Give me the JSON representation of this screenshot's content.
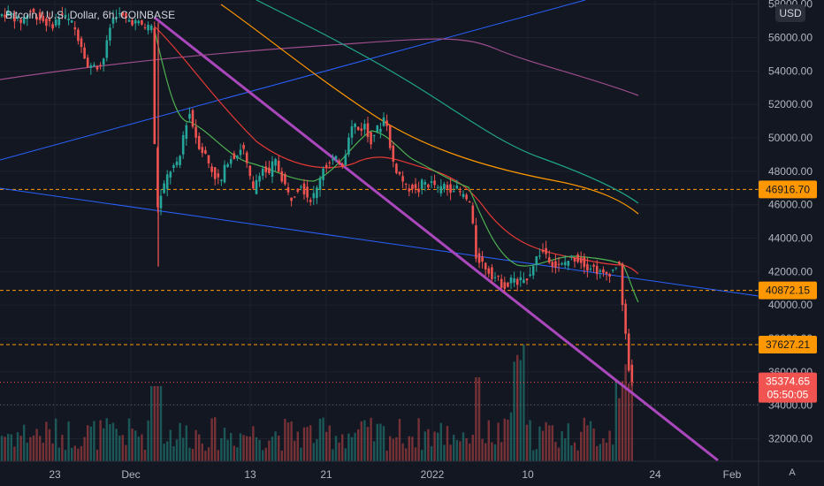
{
  "chart_data": {
    "type": "candlestick",
    "title": "Bitcoin / U.S. Dollar, 6h, COINBASE",
    "currency_button": "USD",
    "auto_scale_button": "A",
    "ylim": [
      30800,
      58600
    ],
    "x_ticks": [
      "23",
      "Dec",
      "13",
      "21",
      "2022",
      "10",
      "24",
      "Feb"
    ],
    "y_ticks": [
      "58000.00",
      "56000.00",
      "54000.00",
      "52000.00",
      "50000.00",
      "48000.00",
      "46000.00",
      "44000.00",
      "42000.00",
      "40000.00",
      "38000.00",
      "36000.00",
      "34000.00",
      "32000.00"
    ],
    "price_path": [
      [
        0,
        57300
      ],
      [
        12,
        57500
      ],
      [
        24,
        56900
      ],
      [
        36,
        57600
      ],
      [
        48,
        57100
      ],
      [
        60,
        56700
      ],
      [
        72,
        57400
      ],
      [
        84,
        56800
      ],
      [
        96,
        55300
      ],
      [
        102,
        54000
      ],
      [
        108,
        54500
      ],
      [
        114,
        54200
      ],
      [
        120,
        54900
      ],
      [
        126,
        56600
      ],
      [
        132,
        57500
      ],
      [
        144,
        57100
      ],
      [
        156,
        56900
      ],
      [
        168,
        56600
      ],
      [
        174,
        56800
      ],
      [
        178,
        45600
      ],
      [
        184,
        46500
      ],
      [
        190,
        47600
      ],
      [
        196,
        48200
      ],
      [
        204,
        48400
      ],
      [
        210,
        50500
      ],
      [
        216,
        51500
      ],
      [
        222,
        50300
      ],
      [
        228,
        49400
      ],
      [
        234,
        49000
      ],
      [
        240,
        48200
      ],
      [
        246,
        47600
      ],
      [
        252,
        47400
      ],
      [
        258,
        48600
      ],
      [
        264,
        48900
      ],
      [
        270,
        49000
      ],
      [
        276,
        49600
      ],
      [
        282,
        48100
      ],
      [
        288,
        46800
      ],
      [
        294,
        47900
      ],
      [
        300,
        48200
      ],
      [
        306,
        47700
      ],
      [
        312,
        48800
      ],
      [
        318,
        47900
      ],
      [
        324,
        47200
      ],
      [
        330,
        46300
      ],
      [
        336,
        46800
      ],
      [
        342,
        47300
      ],
      [
        348,
        46600
      ],
      [
        354,
        46300
      ],
      [
        360,
        46900
      ],
      [
        366,
        48200
      ],
      [
        372,
        48400
      ],
      [
        378,
        48600
      ],
      [
        384,
        48700
      ],
      [
        390,
        48400
      ],
      [
        396,
        50200
      ],
      [
        402,
        50900
      ],
      [
        408,
        50400
      ],
      [
        414,
        50800
      ],
      [
        420,
        49700
      ],
      [
        426,
        50400
      ],
      [
        432,
        50700
      ],
      [
        438,
        51500
      ],
      [
        444,
        48900
      ],
      [
        450,
        48100
      ],
      [
        456,
        47600
      ],
      [
        462,
        46900
      ],
      [
        468,
        47100
      ],
      [
        474,
        46700
      ],
      [
        480,
        47400
      ],
      [
        486,
        47200
      ],
      [
        492,
        47300
      ],
      [
        498,
        46800
      ],
      [
        504,
        47200
      ],
      [
        510,
        46900
      ],
      [
        516,
        47100
      ],
      [
        522,
        46700
      ],
      [
        528,
        46400
      ],
      [
        534,
        46000
      ],
      [
        540,
        42900
      ],
      [
        546,
        42600
      ],
      [
        552,
        42200
      ],
      [
        558,
        41800
      ],
      [
        564,
        41600
      ],
      [
        570,
        41200
      ],
      [
        576,
        41100
      ],
      [
        582,
        41700
      ],
      [
        588,
        41400
      ],
      [
        594,
        41500
      ],
      [
        600,
        41800
      ],
      [
        606,
        42600
      ],
      [
        612,
        43100
      ],
      [
        618,
        43200
      ],
      [
        624,
        42700
      ],
      [
        630,
        42300
      ],
      [
        636,
        42300
      ],
      [
        642,
        42600
      ],
      [
        648,
        42800
      ],
      [
        654,
        42800
      ],
      [
        660,
        42600
      ],
      [
        666,
        42300
      ],
      [
        672,
        42300
      ],
      [
        678,
        42000
      ],
      [
        684,
        41800
      ],
      [
        690,
        41900
      ],
      [
        696,
        42100
      ],
      [
        702,
        42700
      ],
      [
        706,
        40100
      ],
      [
        710,
        37700
      ],
      [
        714,
        35700
      ],
      [
        718,
        35400
      ]
    ],
    "horizontal_levels": [
      {
        "value": 46916.7,
        "label": "46916.70",
        "color": "#ff9800"
      },
      {
        "value": 40872.15,
        "label": "40872.15",
        "color": "#ff9800"
      },
      {
        "value": 37627.21,
        "label": "37627.21",
        "color": "#ff9800"
      }
    ],
    "last_price": {
      "label": "35374.65",
      "countdown": "05:50:05",
      "color": "#f05350"
    },
    "colors": {
      "up": "#26a69a",
      "down": "#ef5350",
      "grid": "#1e222d",
      "axis_text": "#b2b5be"
    }
  }
}
